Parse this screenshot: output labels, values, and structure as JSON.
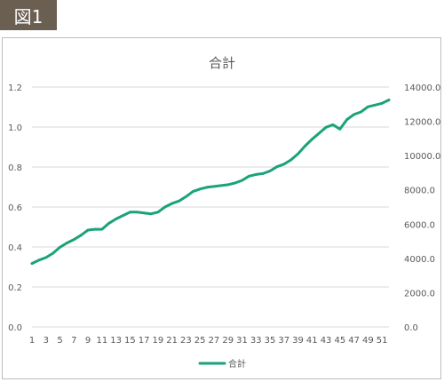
{
  "figure_label": "図1",
  "colors": {
    "series": "#1aa37a",
    "grid": "#d9d9d9",
    "badge": "#6b5f52"
  },
  "chart_data": {
    "type": "line",
    "title": "合計",
    "grid": true,
    "legend_placement": "bottom",
    "x": [
      1,
      2,
      3,
      4,
      5,
      6,
      7,
      8,
      9,
      10,
      11,
      12,
      13,
      14,
      15,
      16,
      17,
      18,
      19,
      20,
      21,
      22,
      23,
      24,
      25,
      26,
      27,
      28,
      29,
      30,
      31,
      32,
      33,
      34,
      35,
      36,
      37,
      38,
      39,
      40,
      41,
      42,
      43,
      44,
      45,
      46,
      47,
      48,
      49,
      50,
      51,
      52
    ],
    "x_tick_labels": [
      "1",
      "3",
      "5",
      "7",
      "9",
      "11",
      "13",
      "15",
      "17",
      "19",
      "21",
      "23",
      "25",
      "27",
      "29",
      "31",
      "33",
      "35",
      "37",
      "39",
      "41",
      "43",
      "45",
      "47",
      "49",
      "51"
    ],
    "ylim_left": [
      0,
      1.2
    ],
    "y_ticks_left": [
      "0.0",
      "0.2",
      "0.4",
      "0.6",
      "0.8",
      "1.0",
      "1.2"
    ],
    "ylim_right": [
      0,
      14000
    ],
    "y_ticks_right": [
      "0.0",
      "2000.0",
      "4000.0",
      "6000.0",
      "8000.0",
      "10000.0",
      "12000.0",
      "14000.0"
    ],
    "series": [
      {
        "name": "合計",
        "axis": "right",
        "values": [
          3700,
          3900,
          4050,
          4300,
          4650,
          4900,
          5100,
          5350,
          5650,
          5700,
          5700,
          6050,
          6300,
          6500,
          6700,
          6700,
          6650,
          6600,
          6700,
          7000,
          7200,
          7350,
          7600,
          7900,
          8050,
          8150,
          8200,
          8250,
          8300,
          8400,
          8550,
          8800,
          8900,
          8950,
          9100,
          9350,
          9500,
          9750,
          10100,
          10550,
          10950,
          11300,
          11650,
          11800,
          11550,
          12100,
          12400,
          12550,
          12850,
          12950,
          13050,
          13250
        ]
      }
    ]
  }
}
